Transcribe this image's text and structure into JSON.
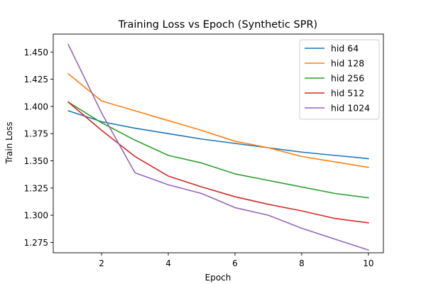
{
  "chart_data": {
    "type": "line",
    "title": "Training Loss vs Epoch (Synthetic SPR)",
    "xlabel": "Epoch",
    "ylabel": "Train Loss",
    "x": [
      1,
      2,
      3,
      4,
      5,
      6,
      7,
      8,
      9,
      10
    ],
    "xlim": [
      0.55,
      10.45
    ],
    "ylim": [
      1.2655,
      1.4665
    ],
    "xticks": [
      2,
      4,
      6,
      8,
      10
    ],
    "xtick_labels": [
      "2",
      "4",
      "6",
      "8",
      "10"
    ],
    "yticks": [
      1.275,
      1.3,
      1.325,
      1.35,
      1.375,
      1.4,
      1.425,
      1.45
    ],
    "ytick_labels": [
      "1.275",
      "1.300",
      "1.325",
      "1.350",
      "1.375",
      "1.400",
      "1.425",
      "1.450"
    ],
    "grid": false,
    "legend_position": "top-right",
    "series": [
      {
        "name": "hid 64",
        "color": "#1f77b4",
        "values": [
          1.396,
          1.386,
          1.38,
          1.375,
          1.37,
          1.366,
          1.362,
          1.358,
          1.355,
          1.352
        ]
      },
      {
        "name": "hid 128",
        "color": "#ff7f0e",
        "values": [
          1.43,
          1.405,
          1.396,
          1.387,
          1.378,
          1.368,
          1.362,
          1.354,
          1.349,
          1.344
        ]
      },
      {
        "name": "hid 256",
        "color": "#2ca02c",
        "values": [
          1.404,
          1.385,
          1.369,
          1.355,
          1.348,
          1.338,
          1.332,
          1.326,
          1.32,
          1.316
        ]
      },
      {
        "name": "hid 512",
        "color": "#d62728",
        "values": [
          1.404,
          1.378,
          1.354,
          1.336,
          1.326,
          1.317,
          1.31,
          1.304,
          1.297,
          1.293
        ]
      },
      {
        "name": "hid 1024",
        "color": "#9467bd",
        "values": [
          1.457,
          1.394,
          1.339,
          1.328,
          1.32,
          1.307,
          1.3,
          1.288,
          1.278,
          1.268
        ]
      }
    ]
  }
}
